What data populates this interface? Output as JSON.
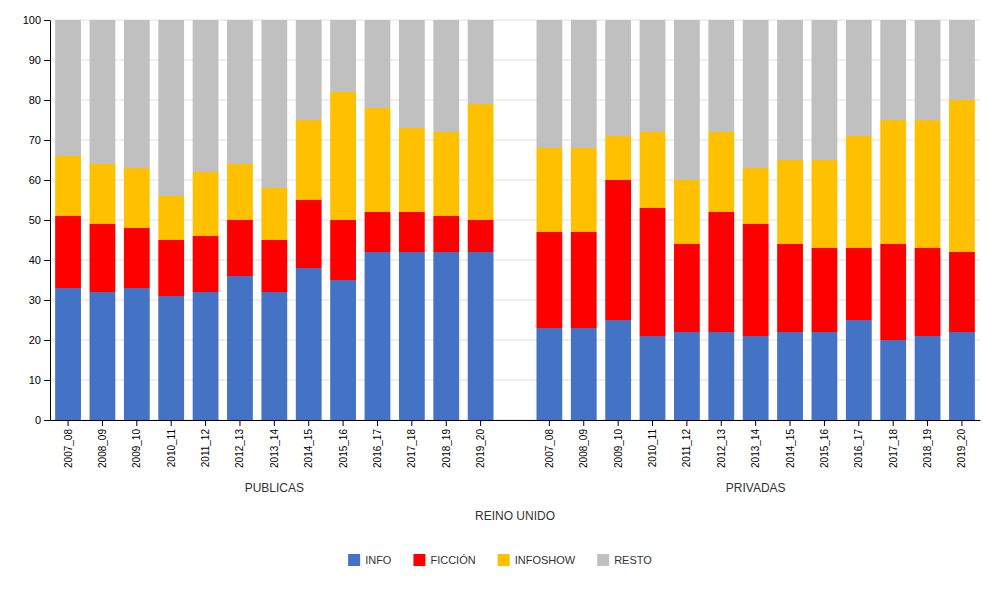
{
  "chart_data": {
    "type": "bar",
    "stacked": true,
    "x_label": "REINO UNIDO",
    "annotations": [
      {
        "text": "PUBLICAS"
      },
      {
        "text": "PRIVADAS"
      }
    ],
    "categories": [
      "2007_08",
      "2008_09",
      "2009_10",
      "2010_11",
      "2011_12",
      "2012_13",
      "2013_14",
      "2014_15",
      "2015_16",
      "2016_17",
      "2017_18",
      "2018_19",
      "2019_20",
      null,
      "2007_08",
      "2008_09",
      "2009_10",
      "2010_11",
      "2011_12",
      "2012_13",
      "2013_14",
      "2014_15",
      "2015_16",
      "2016_17",
      "2017_18",
      "2018_19",
      "2019_20"
    ],
    "series": [
      {
        "name": "INFO",
        "color": "#4472C4",
        "values": [
          33,
          32,
          33,
          31,
          32,
          36,
          32,
          38,
          35,
          42,
          42,
          42,
          42,
          null,
          23,
          23,
          25,
          21,
          22,
          22,
          21,
          22,
          22,
          25,
          20,
          21,
          22
        ]
      },
      {
        "name": "FICCIÓN",
        "color": "#FF0000",
        "values": [
          18,
          17,
          15,
          14,
          14,
          14,
          13,
          17,
          15,
          10,
          10,
          9,
          8,
          null,
          24,
          24,
          35,
          32,
          22,
          30,
          28,
          22,
          21,
          18,
          24,
          22,
          20
        ]
      },
      {
        "name": "INFOSHOW",
        "color": "#FFC000",
        "values": [
          15,
          15,
          15,
          11,
          16,
          14,
          13,
          20,
          32,
          26,
          21,
          21,
          29,
          null,
          21,
          21,
          11,
          19,
          16,
          20,
          14,
          21,
          22,
          28,
          31,
          32,
          38
        ]
      },
      {
        "name": "RESTO",
        "color": "#C0C0C0",
        "values": [
          34,
          36,
          37,
          44,
          38,
          36,
          42,
          25,
          18,
          22,
          27,
          28,
          21,
          null,
          32,
          32,
          29,
          28,
          40,
          28,
          37,
          35,
          35,
          29,
          25,
          25,
          20
        ]
      }
    ],
    "ylim": [
      0,
      100
    ],
    "yticks": [
      0,
      10,
      20,
      30,
      40,
      50,
      60,
      70,
      80,
      90,
      100
    ],
    "grid": true,
    "legend": "bottom"
  }
}
